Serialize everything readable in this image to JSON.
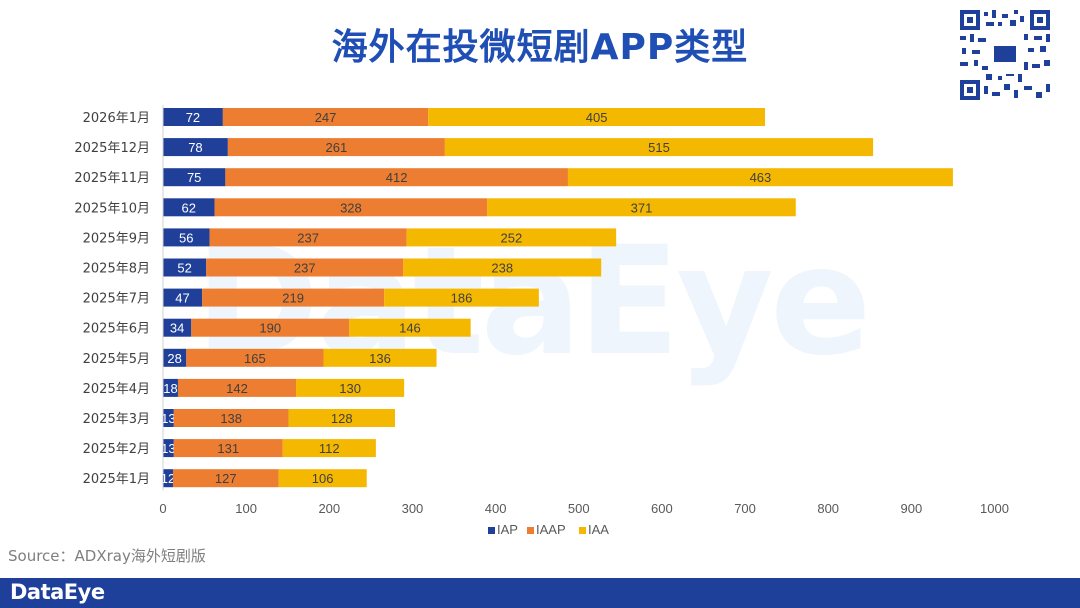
{
  "title": "海外在投微短剧APP类型",
  "source": "Source：ADXray海外短剧版",
  "brand": "DataEye",
  "watermark": "DataEye",
  "chart_data": {
    "type": "bar",
    "orientation": "horizontal",
    "stacked": true,
    "categories": [
      "2026年1月",
      "2025年12月",
      "2025年11月",
      "2025年10月",
      "2025年9月",
      "2025年8月",
      "2025年7月",
      "2025年6月",
      "2025年5月",
      "2025年4月",
      "2025年3月",
      "2025年2月",
      "2025年1月"
    ],
    "series": [
      {
        "name": "IAP",
        "color": "#1f3f99",
        "values": [
          72,
          78,
          75,
          62,
          56,
          52,
          47,
          34,
          28,
          18,
          13,
          13,
          12
        ]
      },
      {
        "name": "IAAP",
        "color": "#ed7d31",
        "values": [
          247,
          261,
          412,
          328,
          237,
          237,
          219,
          190,
          165,
          142,
          138,
          131,
          127
        ]
      },
      {
        "name": "IAA",
        "color": "#f5b800",
        "values": [
          405,
          515,
          463,
          371,
          252,
          238,
          186,
          146,
          136,
          130,
          128,
          112,
          106
        ]
      }
    ],
    "xlim": [
      0,
      1000
    ],
    "xticks": [
      0,
      100,
      200,
      300,
      400,
      500,
      600,
      700,
      800,
      900,
      1000
    ],
    "grid": false,
    "legend_position": "bottom"
  }
}
